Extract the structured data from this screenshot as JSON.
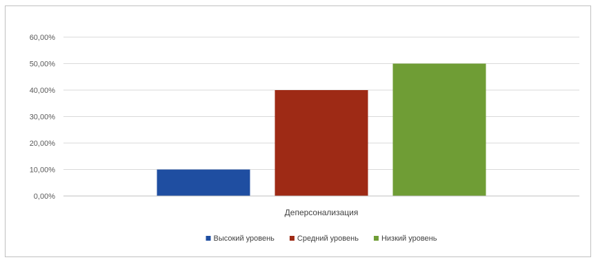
{
  "chart_data": {
    "type": "bar",
    "categories": [
      "Деперсонализация"
    ],
    "series": [
      {
        "name": "Высокий уровень",
        "values": [
          10
        ],
        "color": "#1f4ea1"
      },
      {
        "name": "Средний уровень",
        "values": [
          40
        ],
        "color": "#9e2a15"
      },
      {
        "name": "Низкий уровень",
        "values": [
          50
        ],
        "color": "#6f9d35"
      }
    ],
    "y_ticks": [
      "0,00%",
      "10,00%",
      "20,00%",
      "30,00%",
      "40,00%",
      "50,00%",
      "60,00%"
    ],
    "ylim": [
      0,
      60
    ],
    "y_unit": "%",
    "grid": true,
    "legend_position": "bottom",
    "title": "",
    "xlabel": "",
    "ylabel": ""
  }
}
